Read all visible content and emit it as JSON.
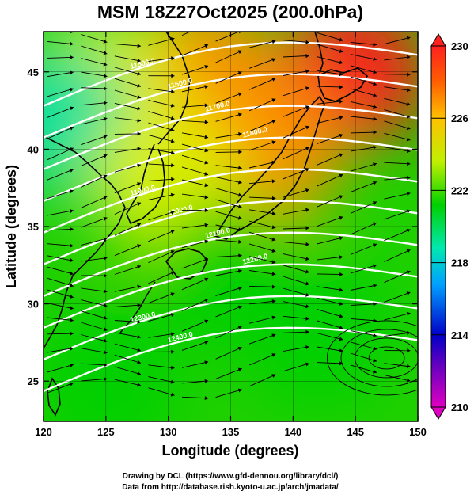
{
  "chart_data": {
    "type": "heatmap",
    "title": "MSM 18Z27Oct2025 (200.0hPa)",
    "xlabel": "Longitude (degrees)",
    "ylabel": "Latitude  (degrees)",
    "xlim": [
      120,
      150
    ],
    "ylim": [
      22.4,
      47.6
    ],
    "x_ticks": [
      "120",
      "125",
      "130",
      "135",
      "140",
      "145",
      "150"
    ],
    "y_ticks": [
      "25",
      "30",
      "35",
      "40",
      "45"
    ],
    "colorbar": {
      "range": [
        210,
        230
      ],
      "tick_labels": [
        "210",
        "214",
        "218",
        "222",
        "226",
        "230"
      ],
      "colors": [
        "#c000c0",
        "#0000c8",
        "#00a0ff",
        "#00e0a0",
        "#00d000",
        "#e0f000",
        "#ff9000",
        "#ff2020"
      ]
    },
    "temperature_regions": [
      {
        "lon": 145,
        "lat": 45,
        "value": 229
      },
      {
        "lon": 133,
        "lat": 45,
        "value": 227
      },
      {
        "lon": 125,
        "lat": 44,
        "value": 223
      },
      {
        "lon": 121,
        "lat": 42,
        "value": 219
      },
      {
        "lon": 138,
        "lat": 40,
        "value": 225
      },
      {
        "lon": 130,
        "lat": 38,
        "value": 224
      },
      {
        "lon": 135,
        "lat": 32,
        "value": 222
      },
      {
        "lon": 142,
        "lat": 28,
        "value": 221
      },
      {
        "lon": 125,
        "lat": 25,
        "value": 222
      }
    ],
    "contour_labels": [
      "11500.0",
      "11600.0",
      "11700.0",
      "11800.0",
      "11900.0",
      "12000.0",
      "12100.0",
      "12200.0",
      "12300.0",
      "12400.0"
    ],
    "wind": "streamlines, predominantly westerly with a cyclonic swirl near 148E 26N"
  },
  "footer": {
    "line1": "Drawing by DCL (https://www.gfd-dennou.org/library/dcl/)",
    "line2": "Data from http://database.rish.kyoto-u.ac.jp/arch/jmadata/"
  }
}
